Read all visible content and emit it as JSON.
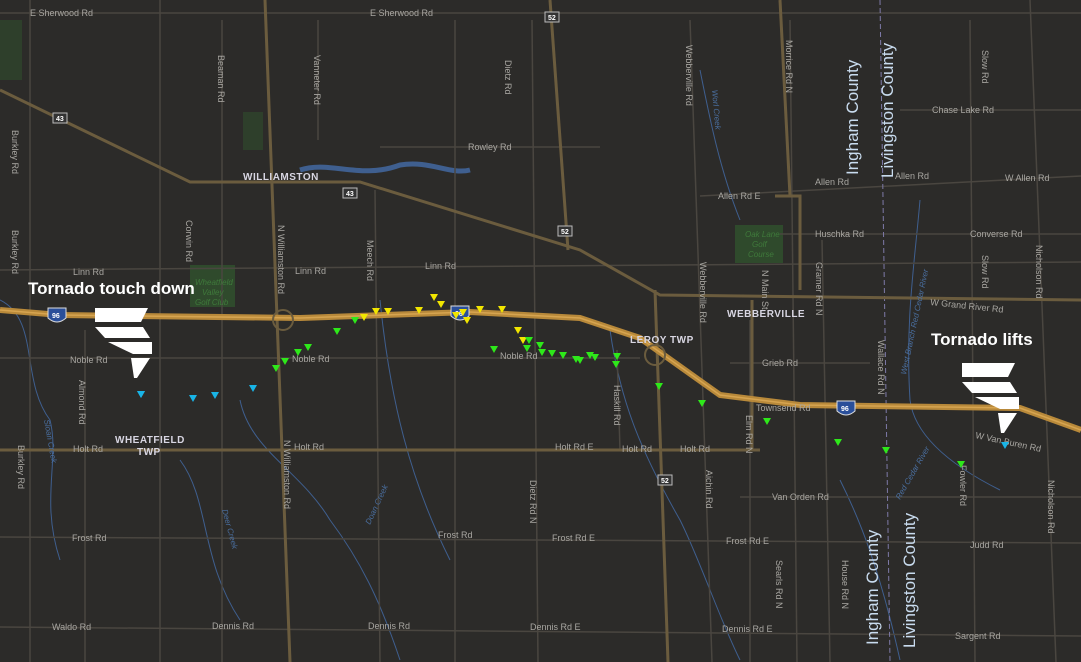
{
  "annotations": {
    "touch_down": "Tornado touch down",
    "lifts": "Tornado lifts"
  },
  "counties": {
    "ingham": "Ingham County",
    "livingston": "Livingston County"
  },
  "places": {
    "williamston": "WILLIAMSTON",
    "webberville": "WEBBERVILLE",
    "leroy": "LEROY TWP",
    "wheatfield_1": "WHEATFIELD",
    "wheatfield_2": "TWP"
  },
  "golf": {
    "wheatfield": [
      "Wheatfield",
      "Valley",
      "Golf Club"
    ],
    "oak_lane": [
      "Oak Lane",
      "Golf",
      "Course"
    ]
  },
  "water": {
    "worl": "Worl Creek",
    "sloan": "Sloan Creek",
    "deer": "Deer Creek",
    "doan": "Doan Creek",
    "west_branch": "West Branch Red Cedar River",
    "red_cedar": "Red Cedar River"
  },
  "shields": {
    "i96": "96",
    "m52": "52",
    "m43": "43"
  },
  "roads": {
    "sherwood": "E Sherwood Rd",
    "rowley": "Rowley Rd",
    "allen_e": "Allen Rd E",
    "allen": "Allen Rd",
    "w_allen": "W Allen Rd",
    "chase_lake": "Chase Lake Rd",
    "huschka": "Huschka Rd",
    "converse": "Converse Rd",
    "linn": "Linn Rd",
    "grand_river": "W Grand River Rd",
    "noble": "Noble Rd",
    "grieb": "Grieb Rd",
    "townsend": "Townsend Rd",
    "van_buren": "W Van Buren Rd",
    "holt": "Holt Rd",
    "holt_e": "Holt Rd E",
    "van_orden": "Van Orden Rd",
    "frost": "Frost Rd",
    "frost_e": "Frost Rd E",
    "judd": "Judd Rd",
    "waldo": "Waldo Rd",
    "dennis": "Dennis Rd",
    "dennis_e": "Dennis Rd E",
    "sargent": "Sargent Rd",
    "burkley": "Burkley Rd",
    "corwin": "Corwin Rd",
    "beaman": "Beaman Rd",
    "vanneter": "Vanneter Rd",
    "meech": "Meech Rd",
    "dietz": "Dietz Rd",
    "dietz_n": "Dietz Rd N",
    "webberville": "Webberville Rd",
    "haskill": "Haskill Rd",
    "aichin": "Aichin Rd",
    "elm": "Elm Rd N",
    "gramer": "Gramer Rd N",
    "wallace": "Wallace Rd N",
    "seeris": "Searls Rd N",
    "house": "House Rd N",
    "williamston": "N Williamston Rd",
    "almond": "Almond Rd",
    "nicholson": "Nicholson Rd",
    "slow": "Slow Rd",
    "morrice": "Morrice Rd N",
    "n_main": "N Main St",
    "fowler": "Fowler Rd"
  },
  "markers": {
    "colors": {
      "yellow": "#f2e600",
      "green": "#2ee81a",
      "cyan": "#19b4e6"
    },
    "counts": {
      "yellow": 13,
      "green": 25,
      "cyan": 6
    }
  },
  "colors": {
    "background": "#2c2b29",
    "interstate": "#b8893a",
    "road": "#5a5446",
    "minor_road": "#4a4640",
    "water": "#3f5f8f"
  }
}
